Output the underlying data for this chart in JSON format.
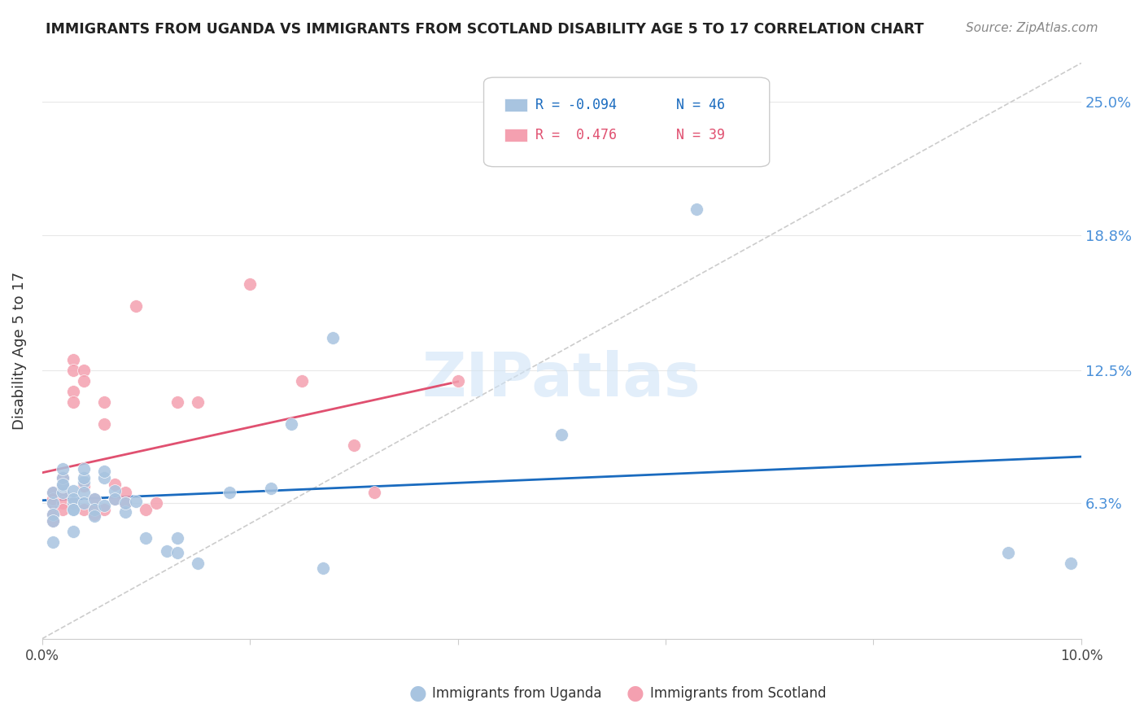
{
  "title": "IMMIGRANTS FROM UGANDA VS IMMIGRANTS FROM SCOTLAND DISABILITY AGE 5 TO 17 CORRELATION CHART",
  "source": "Source: ZipAtlas.com",
  "ylabel": "Disability Age 5 to 17",
  "ytick_labels": [
    "6.3%",
    "12.5%",
    "18.8%",
    "25.0%"
  ],
  "ytick_values": [
    0.063,
    0.125,
    0.188,
    0.25
  ],
  "xlim": [
    0.0,
    0.1
  ],
  "ylim": [
    0.0,
    0.268
  ],
  "legend_r_uganda": "R = -0.094",
  "legend_n_uganda": "N = 46",
  "legend_r_scotland": "R =  0.476",
  "legend_n_scotland": "N = 39",
  "uganda_color": "#a8c4e0",
  "scotland_color": "#f4a0b0",
  "uganda_line_color": "#1a6bbf",
  "scotland_line_color": "#e05070",
  "diagonal_line_color": "#cccccc",
  "watermark": "ZIPatlas",
  "watermark_color": "#d0e4f7",
  "uganda_x": [
    0.001,
    0.001,
    0.001,
    0.001,
    0.001,
    0.002,
    0.002,
    0.002,
    0.002,
    0.002,
    0.003,
    0.003,
    0.003,
    0.003,
    0.003,
    0.003,
    0.004,
    0.004,
    0.004,
    0.004,
    0.004,
    0.005,
    0.005,
    0.005,
    0.006,
    0.006,
    0.006,
    0.007,
    0.007,
    0.008,
    0.008,
    0.009,
    0.01,
    0.012,
    0.013,
    0.013,
    0.015,
    0.018,
    0.022,
    0.024,
    0.027,
    0.028,
    0.05,
    0.063,
    0.093,
    0.099
  ],
  "uganda_y": [
    0.063,
    0.058,
    0.055,
    0.068,
    0.045,
    0.068,
    0.071,
    0.075,
    0.079,
    0.072,
    0.063,
    0.069,
    0.065,
    0.06,
    0.06,
    0.05,
    0.073,
    0.075,
    0.079,
    0.068,
    0.063,
    0.065,
    0.06,
    0.057,
    0.062,
    0.075,
    0.078,
    0.069,
    0.065,
    0.059,
    0.063,
    0.064,
    0.047,
    0.041,
    0.047,
    0.04,
    0.035,
    0.068,
    0.07,
    0.1,
    0.033,
    0.14,
    0.095,
    0.2,
    0.04,
    0.035
  ],
  "scotland_x": [
    0.001,
    0.001,
    0.001,
    0.001,
    0.001,
    0.002,
    0.002,
    0.002,
    0.002,
    0.002,
    0.003,
    0.003,
    0.003,
    0.003,
    0.003,
    0.004,
    0.004,
    0.004,
    0.004,
    0.005,
    0.005,
    0.005,
    0.006,
    0.006,
    0.006,
    0.007,
    0.007,
    0.008,
    0.008,
    0.009,
    0.01,
    0.011,
    0.013,
    0.015,
    0.02,
    0.025,
    0.03,
    0.032,
    0.04
  ],
  "scotland_y": [
    0.063,
    0.058,
    0.055,
    0.068,
    0.065,
    0.068,
    0.071,
    0.075,
    0.063,
    0.06,
    0.13,
    0.115,
    0.125,
    0.11,
    0.063,
    0.125,
    0.12,
    0.06,
    0.071,
    0.065,
    0.06,
    0.058,
    0.1,
    0.11,
    0.06,
    0.072,
    0.065,
    0.068,
    0.063,
    0.155,
    0.06,
    0.063,
    0.11,
    0.11,
    0.165,
    0.12,
    0.09,
    0.068,
    0.12
  ],
  "background_color": "#ffffff",
  "grid_color": "#e8e8e8"
}
